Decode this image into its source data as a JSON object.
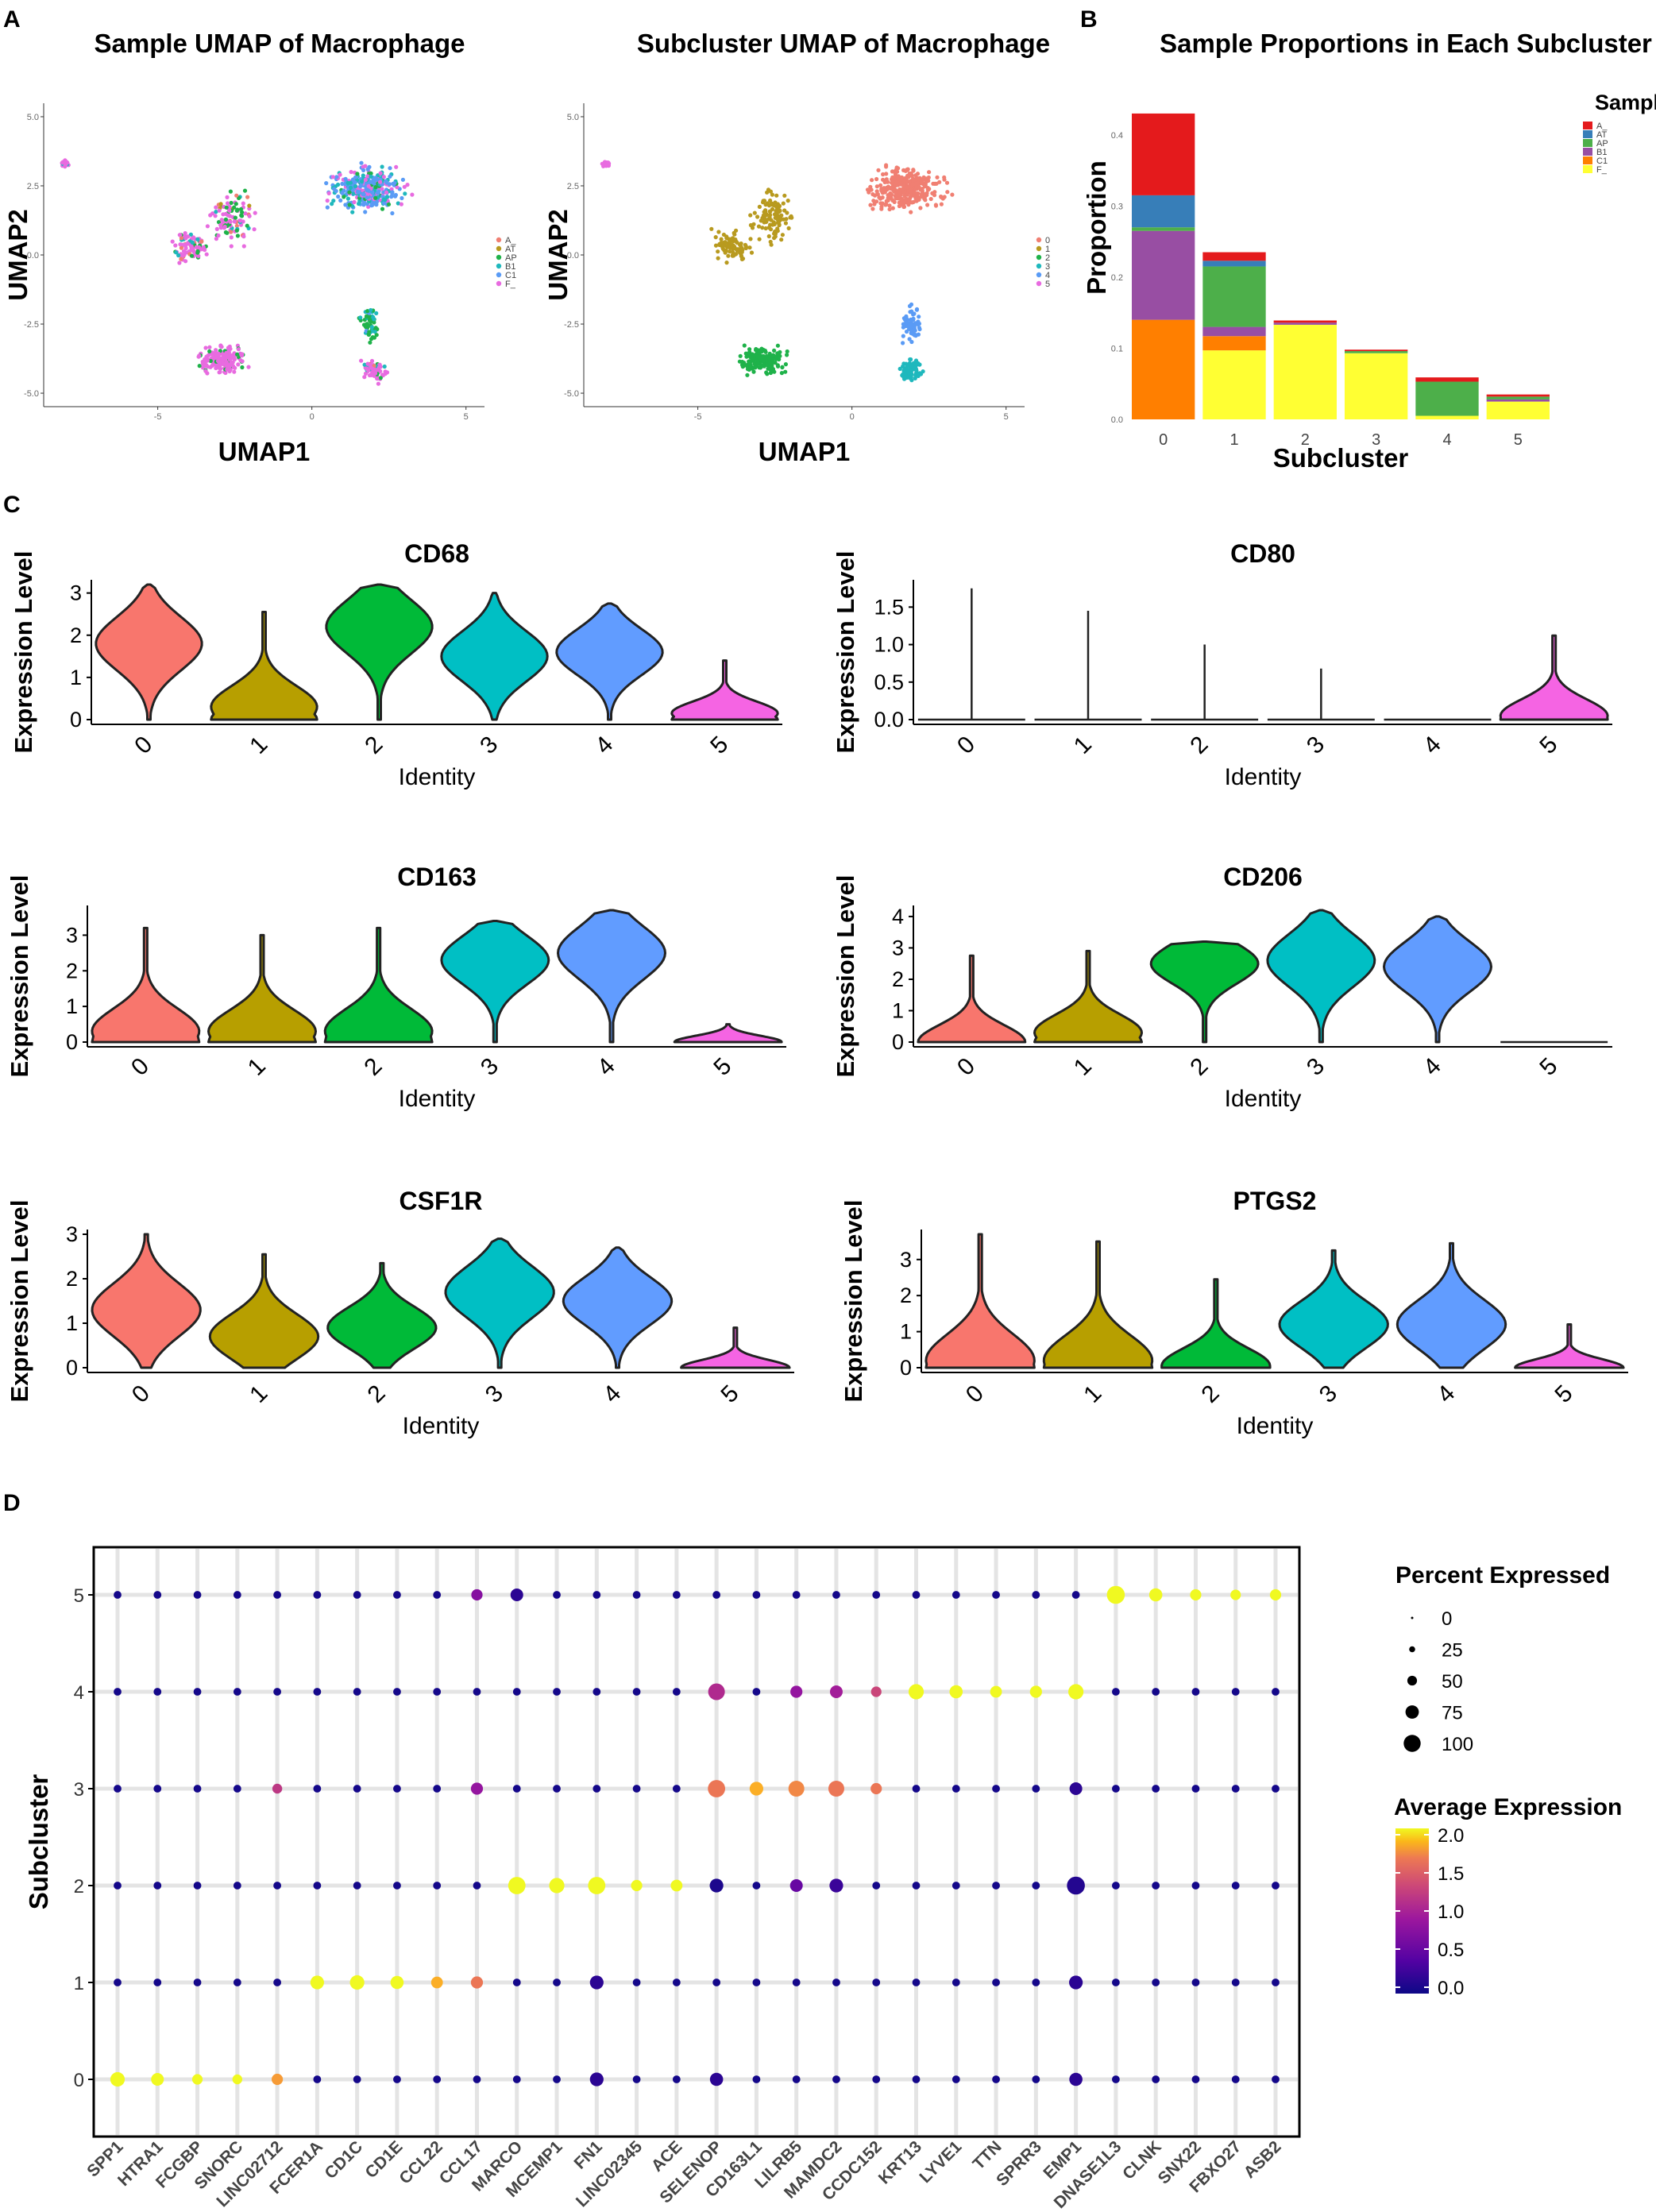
{
  "panels": {
    "a": "A",
    "b": "B",
    "c": "C",
    "d": "D"
  },
  "umap": {
    "sample_title": "Sample UMAP of Macrophage",
    "subcluster_title": "Subcluster UMAP of Macrophage",
    "xlabel": "UMAP1",
    "ylabel": "UMAP2",
    "x_ticks": [
      "-5",
      "0",
      "5"
    ],
    "y_ticks": [
      "5.0",
      "2.5",
      "0.0",
      "-2.5",
      "-5.0"
    ],
    "sample_legend": [
      "A_",
      "AT",
      "AP",
      "B1",
      "C1",
      "F_"
    ],
    "sample_colors": [
      "#f07f72",
      "#b89a1f",
      "#1fb24a",
      "#1fb8bd",
      "#5a9bf5",
      "#e86be0"
    ],
    "subcluster_legend": [
      "0",
      "1",
      "2",
      "3",
      "4",
      "5"
    ],
    "subcluster_colors": [
      "#f07f72",
      "#b89a1f",
      "#1fb24a",
      "#1fb8bd",
      "#5a9bf5",
      "#e86be0"
    ]
  },
  "chart_data": [
    {
      "type": "bar",
      "title": "Sample Proportions in Each Subcluster",
      "xlabel": "Subcluster",
      "ylabel": "Proportion",
      "ylim": [
        0,
        0.45
      ],
      "y_ticks": [
        "0.0",
        "0.1",
        "0.2",
        "0.3",
        "0.4"
      ],
      "categories": [
        "0",
        "1",
        "2",
        "3",
        "4",
        "5"
      ],
      "legend_title": "Sample",
      "series": [
        {
          "name": "F_",
          "color": "#ffff33",
          "values": [
            0.0,
            0.097,
            0.133,
            0.093,
            0.005,
            0.025
          ]
        },
        {
          "name": "C1",
          "color": "#ff7f00",
          "values": [
            0.14,
            0.02,
            0.0,
            0.0,
            0.0,
            0.0
          ]
        },
        {
          "name": "B1",
          "color": "#984ea3",
          "values": [
            0.125,
            0.013,
            0.003,
            0.0,
            0.0,
            0.003
          ]
        },
        {
          "name": "AP",
          "color": "#4daf4a",
          "values": [
            0.005,
            0.085,
            0.0,
            0.003,
            0.048,
            0.004
          ]
        },
        {
          "name": "AT",
          "color": "#377eb8",
          "values": [
            0.045,
            0.008,
            0.0,
            0.0,
            0.0,
            0.0
          ]
        },
        {
          "name": "A_",
          "color": "#e41a1c",
          "values": [
            0.115,
            0.012,
            0.003,
            0.002,
            0.006,
            0.003
          ]
        }
      ]
    },
    {
      "type": "violin",
      "panel": "C",
      "xlabel": "Identity",
      "ylabel": "Expression Level",
      "categories": [
        "0",
        "1",
        "2",
        "3",
        "4",
        "5"
      ],
      "colors": [
        "#f8766d",
        "#b79f00",
        "#00ba38",
        "#00bfc4",
        "#619cff",
        "#f564e3"
      ],
      "genes": [
        {
          "name": "CD68",
          "ymax": 3.2,
          "y_ticks": [
            "0",
            "1",
            "2",
            "3"
          ],
          "y_tick_values": [
            0,
            1,
            2,
            3
          ],
          "violins": [
            {
              "max": 3.2,
              "mode": 1.8
            },
            {
              "max": 2.55,
              "mode": 0.3
            },
            {
              "max": 3.2,
              "mode": 2.2
            },
            {
              "max": 3.0,
              "mode": 1.5
            },
            {
              "max": 2.75,
              "mode": 1.6
            },
            {
              "max": 1.4,
              "mode": 0.15
            }
          ]
        },
        {
          "name": "CD80",
          "ymax": 1.8,
          "y_ticks": [
            "0.0",
            "0.5",
            "1.0",
            "1.5"
          ],
          "y_tick_values": [
            0,
            0.5,
            1.0,
            1.5
          ],
          "violins": [
            {
              "max": 1.75,
              "mode": 0
            },
            {
              "max": 1.45,
              "mode": 0
            },
            {
              "max": 1.0,
              "mode": 0
            },
            {
              "max": 0.68,
              "mode": 0
            },
            {
              "max": 0.0,
              "mode": 0
            },
            {
              "max": 1.12,
              "mode": 0.05
            }
          ]
        },
        {
          "name": "CD163",
          "ymax": 3.7,
          "y_ticks": [
            "0",
            "1",
            "2",
            "3"
          ],
          "y_tick_values": [
            0,
            1,
            2,
            3
          ],
          "violins": [
            {
              "max": 3.2,
              "mode": 0.3
            },
            {
              "max": 3.0,
              "mode": 0.3
            },
            {
              "max": 3.2,
              "mode": 0.3
            },
            {
              "max": 3.4,
              "mode": 2.3
            },
            {
              "max": 3.7,
              "mode": 2.5
            },
            {
              "max": 0.5,
              "mode": 0
            }
          ]
        },
        {
          "name": "CD206",
          "ymax": 4.2,
          "y_ticks": [
            "0",
            "1",
            "2",
            "3",
            "4"
          ],
          "y_tick_values": [
            0,
            1,
            2,
            3,
            4
          ],
          "violins": [
            {
              "max": 2.75,
              "mode": 0
            },
            {
              "max": 2.9,
              "mode": 0.3
            },
            {
              "max": 3.2,
              "mode": 2.5
            },
            {
              "max": 4.2,
              "mode": 2.6
            },
            {
              "max": 4.0,
              "mode": 2.4
            },
            {
              "max": 0.0,
              "mode": 0
            }
          ]
        },
        {
          "name": "CSF1R",
          "ymax": 3.0,
          "y_ticks": [
            "0",
            "1",
            "2",
            "3"
          ],
          "y_tick_values": [
            0,
            1,
            2,
            3
          ],
          "violins": [
            {
              "max": 3.0,
              "mode": 1.3
            },
            {
              "max": 2.55,
              "mode": 0.7
            },
            {
              "max": 2.35,
              "mode": 0.9
            },
            {
              "max": 2.9,
              "mode": 1.7
            },
            {
              "max": 2.7,
              "mode": 1.5
            },
            {
              "max": 0.9,
              "mode": 0
            }
          ]
        },
        {
          "name": "PTGS2",
          "ymax": 3.7,
          "y_ticks": [
            "0",
            "1",
            "2",
            "3"
          ],
          "y_tick_values": [
            0,
            1,
            2,
            3
          ],
          "violins": [
            {
              "max": 3.7,
              "mode": 0.2
            },
            {
              "max": 3.5,
              "mode": 0.2
            },
            {
              "max": 2.45,
              "mode": 0.05
            },
            {
              "max": 3.25,
              "mode": 1.2
            },
            {
              "max": 3.45,
              "mode": 1.2
            },
            {
              "max": 1.2,
              "mode": 0
            }
          ]
        }
      ]
    },
    {
      "type": "scatter",
      "subtype": "dotplot",
      "panel": "D",
      "ylabel": "Subcluster",
      "y_categories": [
        "0",
        "1",
        "2",
        "3",
        "4",
        "5"
      ],
      "genes": [
        "SPP1",
        "HTRA1",
        "FCGBP",
        "SNORC",
        "LINC02712",
        "FCER1A",
        "CD1C",
        "CD1E",
        "CCL22",
        "CCL17",
        "MARCO",
        "MCEMP1",
        "FN1",
        "LINC02345",
        "ACE",
        "SELENOP",
        "CD163L1",
        "LILRB5",
        "MAMDC2",
        "CCDC152",
        "KRT13",
        "LYVE1",
        "TTN",
        "SPRR3",
        "EMP1",
        "DNASE1L3",
        "CLNK",
        "SNX22",
        "FBXO27",
        "ASB2"
      ],
      "size_legend_title": "Percent Expressed",
      "size_legend": [
        "0",
        "25",
        "50",
        "75",
        "100"
      ],
      "color_legend_title": "Average Expression",
      "color_legend": [
        "2.0",
        "1.5",
        "1.0",
        "0.5",
        "0.0"
      ],
      "highlights": [
        {
          "gene": "SPP1",
          "sub": "0",
          "pct": 35,
          "avg": 2.0
        },
        {
          "gene": "HTRA1",
          "sub": "0",
          "pct": 25,
          "avg": 2.0
        },
        {
          "gene": "FCGBP",
          "sub": "0",
          "pct": 15,
          "avg": 2.0
        },
        {
          "gene": "SNORC",
          "sub": "0",
          "pct": 12,
          "avg": 2.0
        },
        {
          "gene": "LINC02712",
          "sub": "0",
          "pct": 18,
          "avg": 1.8
        },
        {
          "gene": "FCER1A",
          "sub": "1",
          "pct": 30,
          "avg": 2.0
        },
        {
          "gene": "CD1C",
          "sub": "1",
          "pct": 35,
          "avg": 2.0
        },
        {
          "gene": "CD1E",
          "sub": "1",
          "pct": 28,
          "avg": 2.0
        },
        {
          "gene": "CCL22",
          "sub": "1",
          "pct": 20,
          "avg": 1.9
        },
        {
          "gene": "CCL17",
          "sub": "1",
          "pct": 22,
          "avg": 1.6
        },
        {
          "gene": "MARCO",
          "sub": "2",
          "pct": 55,
          "avg": 2.0
        },
        {
          "gene": "MCEMP1",
          "sub": "2",
          "pct": 40,
          "avg": 2.0
        },
        {
          "gene": "FN1",
          "sub": "2",
          "pct": 55,
          "avg": 2.0
        },
        {
          "gene": "LINC02345",
          "sub": "2",
          "pct": 18,
          "avg": 2.0
        },
        {
          "gene": "ACE",
          "sub": "2",
          "pct": 20,
          "avg": 2.0
        },
        {
          "gene": "SELENOP",
          "sub": "3",
          "pct": 55,
          "avg": 1.6
        },
        {
          "gene": "CD163L1",
          "sub": "3",
          "pct": 30,
          "avg": 1.9
        },
        {
          "gene": "LILRB5",
          "sub": "3",
          "pct": 45,
          "avg": 1.7
        },
        {
          "gene": "MAMDC2",
          "sub": "3",
          "pct": 45,
          "avg": 1.6
        },
        {
          "gene": "CCDC152",
          "sub": "3",
          "pct": 18,
          "avg": 1.6
        },
        {
          "gene": "SELENOP",
          "sub": "4",
          "pct": 50,
          "avg": 1.1
        },
        {
          "gene": "KRT13",
          "sub": "4",
          "pct": 40,
          "avg": 2.0
        },
        {
          "gene": "LYVE1",
          "sub": "4",
          "pct": 28,
          "avg": 2.0
        },
        {
          "gene": "TTN",
          "sub": "4",
          "pct": 20,
          "avg": 2.0
        },
        {
          "gene": "SPRR3",
          "sub": "4",
          "pct": 22,
          "avg": 2.0
        },
        {
          "gene": "EMP1",
          "sub": "4",
          "pct": 40,
          "avg": 2.0
        },
        {
          "gene": "DNASE1L3",
          "sub": "5",
          "pct": 60,
          "avg": 2.0
        },
        {
          "gene": "CLNK",
          "sub": "5",
          "pct": 28,
          "avg": 2.0
        },
        {
          "gene": "SNX22",
          "sub": "5",
          "pct": 18,
          "avg": 2.0
        },
        {
          "gene": "FBXO27",
          "sub": "5",
          "pct": 15,
          "avg": 2.0
        },
        {
          "gene": "ASB2",
          "sub": "5",
          "pct": 18,
          "avg": 2.0
        },
        {
          "gene": "EMP1",
          "sub": "2",
          "pct": 60,
          "avg": 0.15
        },
        {
          "gene": "SELENOP",
          "sub": "2",
          "pct": 30,
          "avg": 0.1
        },
        {
          "gene": "MAMDC2",
          "sub": "2",
          "pct": 30,
          "avg": 0.3
        },
        {
          "gene": "LILRB5",
          "sub": "2",
          "pct": 25,
          "avg": 0.6
        },
        {
          "gene": "FN1",
          "sub": "0",
          "pct": 30,
          "avg": 0.2
        },
        {
          "gene": "FN1",
          "sub": "1",
          "pct": 30,
          "avg": 0.2
        },
        {
          "gene": "SELENOP",
          "sub": "0",
          "pct": 28,
          "avg": 0.2
        },
        {
          "gene": "EMP1",
          "sub": "0",
          "pct": 28,
          "avg": 0.2
        },
        {
          "gene": "EMP1",
          "sub": "1",
          "pct": 30,
          "avg": 0.2
        },
        {
          "gene": "EMP1",
          "sub": "3",
          "pct": 25,
          "avg": 0.2
        },
        {
          "gene": "MARCO",
          "sub": "5",
          "pct": 25,
          "avg": 0.2
        },
        {
          "gene": "CCL17",
          "sub": "5",
          "pct": 18,
          "avg": 0.8
        },
        {
          "gene": "CCL17",
          "sub": "3",
          "pct": 22,
          "avg": 0.9
        },
        {
          "gene": "LINC02712",
          "sub": "3",
          "pct": 12,
          "avg": 1.2
        },
        {
          "gene": "LILRB5",
          "sub": "4",
          "pct": 22,
          "avg": 0.9
        },
        {
          "gene": "MAMDC2",
          "sub": "4",
          "pct": 25,
          "avg": 1.0
        },
        {
          "gene": "CCDC152",
          "sub": "4",
          "pct": 15,
          "avg": 1.3
        }
      ]
    }
  ]
}
